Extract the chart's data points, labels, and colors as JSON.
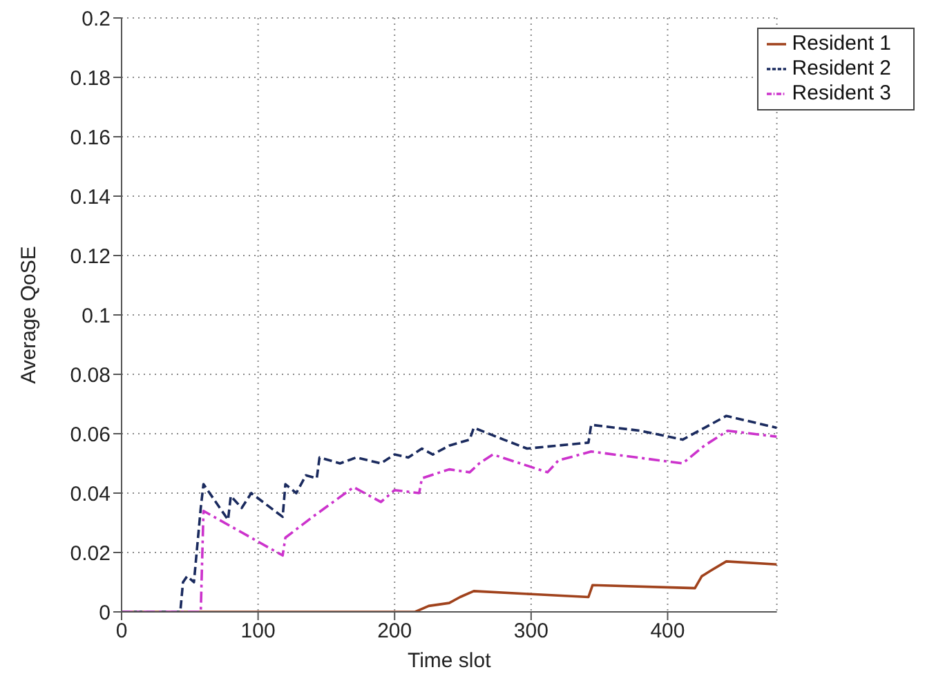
{
  "chart_data": {
    "type": "line",
    "xlabel": "Time slot",
    "ylabel": "Average QoSE",
    "xlim": [
      0,
      480
    ],
    "ylim": [
      0,
      0.2
    ],
    "xticks": [
      0,
      100,
      200,
      300,
      400
    ],
    "yticks": [
      0,
      0.02,
      0.04,
      0.06,
      0.08,
      0.1,
      0.12,
      0.14,
      0.16,
      0.18,
      0.2
    ],
    "grid": true,
    "legend": "top right",
    "marker": "none",
    "series": [
      {
        "name": "Resident 1",
        "color": "#a0421c",
        "line_style": "solid",
        "x": [
          0,
          215,
          225,
          240,
          248,
          258,
          300,
          342,
          345,
          420,
          425,
          432,
          443,
          480
        ],
        "values": [
          0,
          0,
          0.002,
          0.003,
          0.005,
          0.007,
          0.006,
          0.005,
          0.009,
          0.008,
          0.012,
          0.014,
          0.017,
          0.016
        ]
      },
      {
        "name": "Resident 2",
        "color": "#1a2a5e",
        "line_style": "dashed",
        "x": [
          0,
          43,
          45,
          48,
          53,
          58,
          60,
          78,
          80,
          88,
          95,
          118,
          120,
          128,
          135,
          143,
          145,
          160,
          172,
          190,
          200,
          210,
          220,
          228,
          240,
          255,
          258,
          280,
          297,
          342,
          344,
          380,
          411,
          443,
          480
        ],
        "values": [
          0,
          0,
          0.01,
          0.012,
          0.01,
          0.035,
          0.043,
          0.031,
          0.039,
          0.035,
          0.04,
          0.032,
          0.043,
          0.04,
          0.046,
          0.045,
          0.052,
          0.05,
          0.052,
          0.05,
          0.053,
          0.052,
          0.055,
          0.053,
          0.056,
          0.058,
          0.062,
          0.058,
          0.055,
          0.057,
          0.063,
          0.061,
          0.058,
          0.066,
          0.062
        ]
      },
      {
        "name": "Resident 3",
        "color": "#cc33cc",
        "line_style": "dashdot",
        "x": [
          0,
          58,
          60,
          118,
          120,
          140,
          155,
          170,
          190,
          200,
          218,
          220,
          240,
          255,
          262,
          272,
          312,
          320,
          344,
          411,
          427,
          444,
          480
        ],
        "values": [
          0,
          0,
          0.034,
          0.019,
          0.025,
          0.032,
          0.037,
          0.042,
          0.037,
          0.041,
          0.04,
          0.045,
          0.048,
          0.047,
          0.05,
          0.053,
          0.047,
          0.051,
          0.054,
          0.05,
          0.056,
          0.061,
          0.059
        ]
      }
    ]
  }
}
